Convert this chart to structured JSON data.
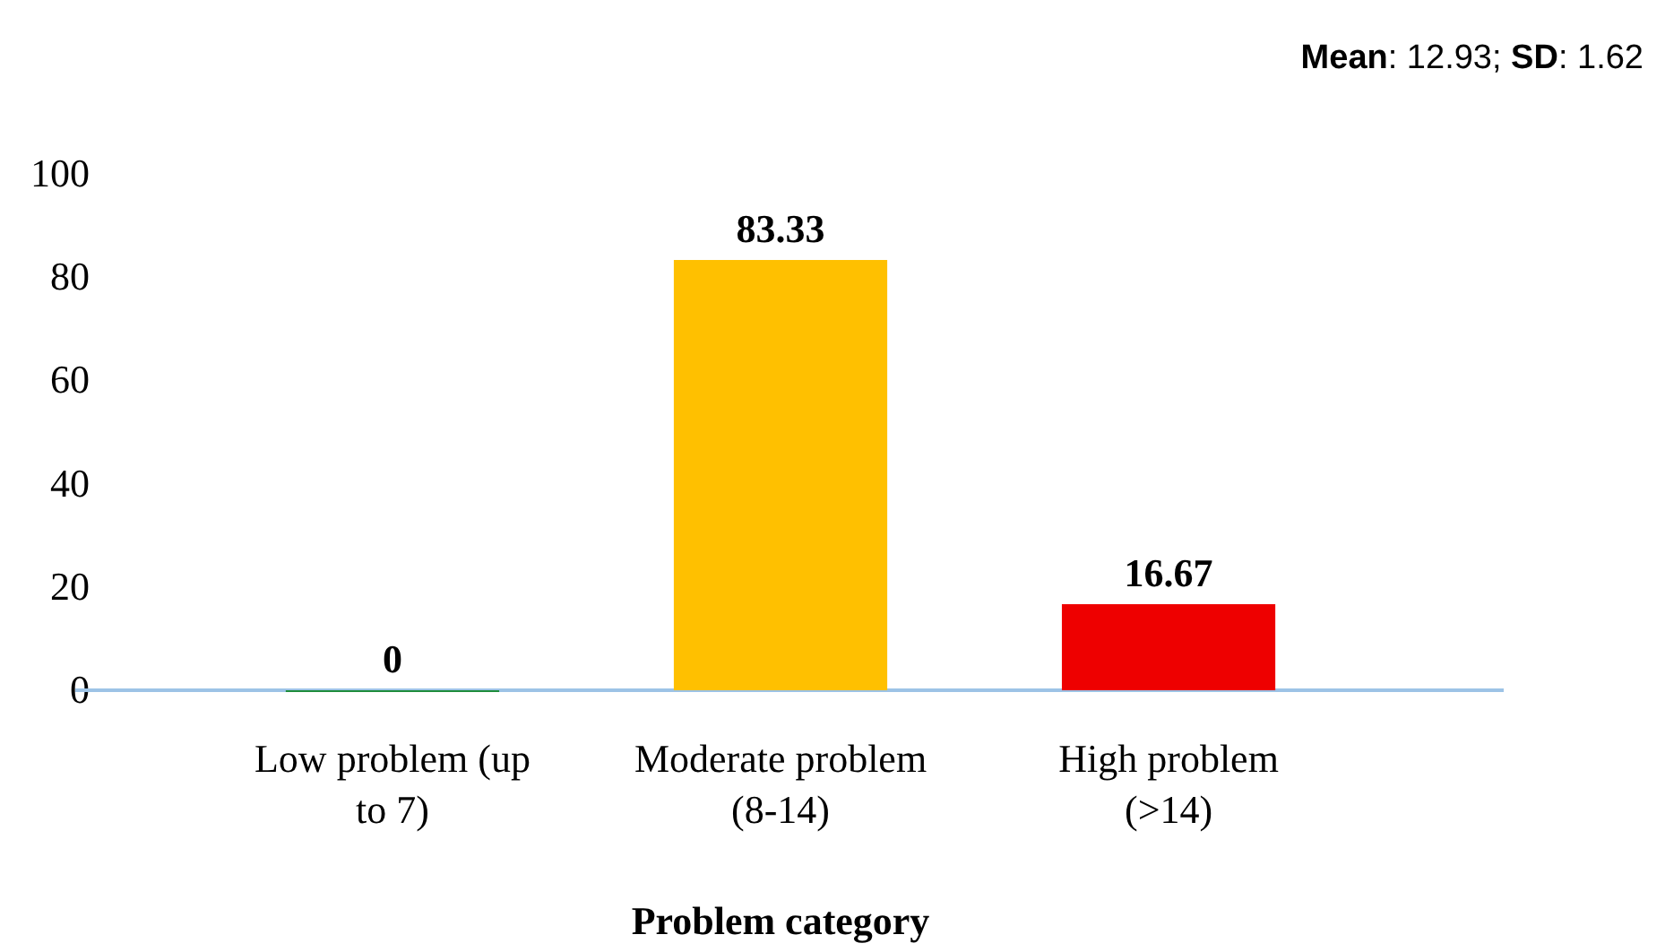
{
  "chart_data": {
    "type": "bar",
    "xlabel": "Problem category",
    "categories": [
      "Low problem (up to 7)",
      "Moderate problem (8-14)",
      "High problem (>14)"
    ],
    "values": [
      0,
      83.33,
      16.67
    ],
    "colors": [
      "#1e8c3c",
      "#ffc000",
      "#ee0000"
    ],
    "ylim": [
      0,
      100
    ],
    "yticks": [
      0,
      20,
      40,
      60,
      80,
      100
    ],
    "grid": false,
    "data_labels": true,
    "annotations": [
      "Mean: 12.93; SD: 1.62"
    ]
  }
}
